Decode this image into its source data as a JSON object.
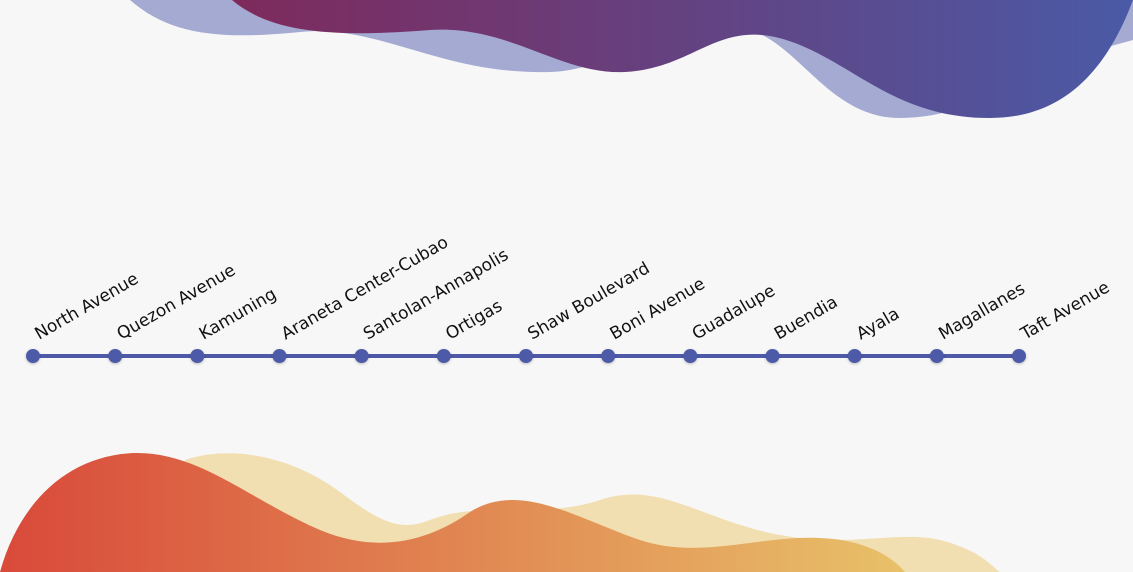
{
  "line": {
    "color": "#4e5aa8",
    "stations": [
      "North Avenue",
      "Quezon Avenue",
      "Kamuning",
      "Araneta Center-Cubao",
      "Santolan-Annapolis",
      "Ortigas",
      "Shaw Boulevard",
      "Boni Avenue",
      "Guadalupe",
      "Buendia",
      "Ayala",
      "Magallanes",
      "Taft Avenue"
    ]
  },
  "decor": {
    "top_wave_colors": [
      "#7e2a5c",
      "#4a5aa6"
    ],
    "top_back_wave_color": "#a5aad2",
    "bottom_wave_colors": [
      "#d9493a",
      "#e8c169"
    ],
    "bottom_back_wave_color": "#f2dfb1"
  }
}
